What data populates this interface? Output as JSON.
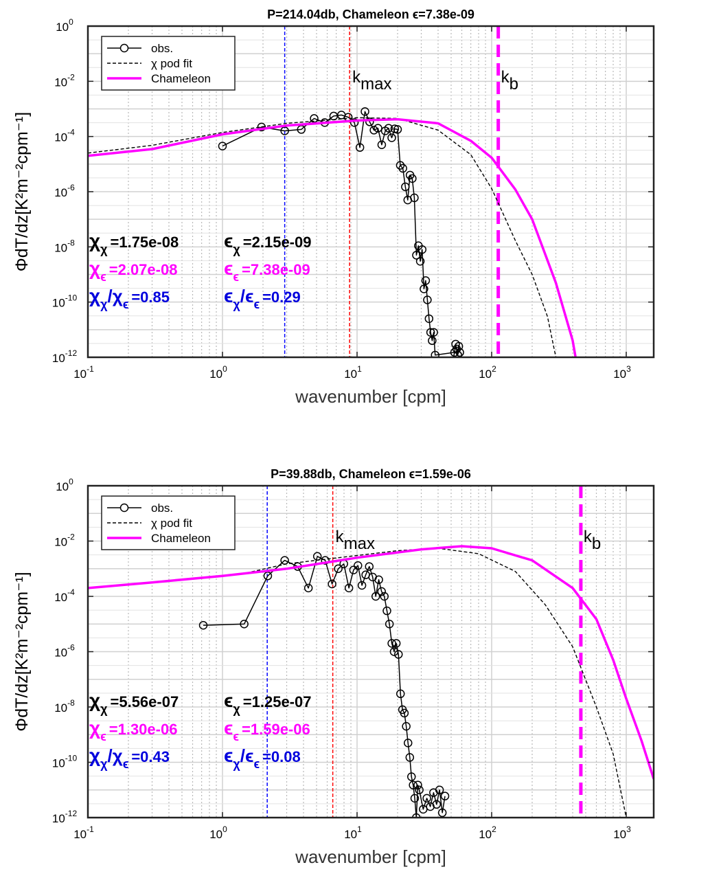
{
  "chart_data": [
    {
      "type": "line",
      "title": "P=214.04db, Chameleon ϵ=7.38e-09",
      "xlabel": "wavenumber [cpm]",
      "ylabel": "ΦdT/dz[K²m⁻²cpm⁻¹]",
      "x_scale": "log",
      "y_scale": "log",
      "xlim": [
        0.1,
        1600
      ],
      "ylim": [
        1e-12,
        1
      ],
      "x_ticks": [
        "10-1",
        "100",
        "101",
        "102",
        "103"
      ],
      "y_ticks": [
        "10-12",
        "10-10",
        "10-8",
        "10-6",
        "10-4",
        "10-2",
        "100"
      ],
      "grid": true,
      "legend_position": "top-left",
      "legend": [
        "obs.",
        "χ pod fit",
        "Chameleon"
      ],
      "series": [
        {
          "name": "obs.",
          "style": "solid-circles",
          "color": "#000000",
          "x": [
            1.0,
            1.95,
            2.9,
            3.85,
            4.8,
            5.75,
            6.7,
            7.65,
            8.6,
            9.55,
            10.5,
            11.45,
            12.4,
            13.35,
            14.3,
            15.25,
            16.2,
            17.15,
            18.1,
            19.05,
            20.0,
            20.95,
            21.9,
            22.85,
            23.8,
            24.75,
            25.7,
            26.65,
            27.6,
            28.55,
            29.5,
            30.45,
            31.4,
            32.35,
            33.3,
            34.25,
            35.2,
            36.15,
            37.1,
            38.05,
            53.0,
            54.0,
            55.0,
            56.0,
            57.0,
            58.0
          ],
          "y": [
            4.5e-05,
            0.00022,
            0.00016,
            0.00018,
            0.00045,
            0.00032,
            0.00055,
            0.0006,
            0.0005,
            0.00032,
            4e-05,
            0.0008,
            0.00034,
            0.00017,
            0.0002,
            5e-05,
            0.00016,
            0.0002,
            9e-05,
            0.00019,
            0.00018,
            9e-06,
            7e-06,
            1.5e-06,
            5e-07,
            4e-06,
            3e-06,
            6e-07,
            5e-09,
            1.1e-08,
            3e-09,
            8e-09,
            3e-10,
            6e-10,
            1.2e-10,
            2.5e-11,
            8e-12,
            4e-12,
            8e-12,
            1.2e-12,
            1.5e-12,
            3e-12,
            2e-12,
            1.2e-12,
            2.5e-12,
            1.5e-12
          ]
        },
        {
          "name": "χ pod fit",
          "style": "dashed",
          "color": "#000000",
          "x": [
            0.1,
            0.3,
            1.0,
            3.0,
            10,
            20,
            40,
            70,
            100,
            150,
            200,
            260,
            300
          ],
          "y": [
            2.5e-05,
            4.8e-05,
            0.00014,
            0.0003,
            0.00048,
            0.00045,
            0.00017,
            2.2e-05,
            1.3e-06,
            1.7e-08,
            1e-09,
            3e-11,
            1e-12
          ]
        },
        {
          "name": "Chameleon",
          "style": "solid-thick",
          "color": "#ff00ff",
          "x": [
            0.1,
            0.3,
            1.0,
            3.0,
            10,
            20,
            40,
            70,
            100,
            150,
            200,
            300,
            400,
            420
          ],
          "y": [
            2e-05,
            3.5e-05,
            0.00012,
            0.00025,
            0.00038,
            0.00042,
            0.0003,
            7e-05,
            1.7e-05,
            1.2e-06,
            1e-07,
            5e-10,
            4e-12,
            1e-12
          ]
        }
      ],
      "vlines": [
        {
          "x": 2.9,
          "style": "dashed-thin",
          "color": "#0000ff"
        },
        {
          "x": 8.8,
          "style": "dashed-thin",
          "color": "#ff0000",
          "label_main": "k",
          "label_sub": "max"
        },
        {
          "x": 112,
          "style": "dashed-thick",
          "color": "#ff00ff",
          "label_main": "k",
          "label_sub": "b"
        }
      ],
      "stats": {
        "row1": {
          "left_sym": "χ",
          "left_sub": "χ",
          "left_val": "=1.75e-08",
          "right_sym": "ϵ",
          "right_sub": "χ",
          "right_val": "=2.15e-09",
          "color": "#000000"
        },
        "row2": {
          "left_sym": "χ",
          "left_sub": "ϵ",
          "left_val": "=2.07e-08",
          "right_sym": "ϵ",
          "right_sub": "ϵ",
          "right_val": "=7.38e-09",
          "color": "#ff00ff"
        },
        "row3": {
          "left_sym": "χ",
          "left_sub": "χ",
          "left_mid": "/χ",
          "left_sub2": "ϵ",
          "left_val": "=0.85",
          "right_sym": "ϵ",
          "right_sub": "χ",
          "right_mid": "/ϵ",
          "right_sub2": "ϵ",
          "right_val": "=0.29",
          "color": "#0000dd"
        }
      }
    },
    {
      "type": "line",
      "title": "P=39.88db, Chameleon ϵ=1.59e-06",
      "xlabel": "wavenumber [cpm]",
      "ylabel": "ΦdT/dz[K²m⁻²cpm⁻¹]",
      "x_scale": "log",
      "y_scale": "log",
      "xlim": [
        0.1,
        1600
      ],
      "ylim": [
        1e-12,
        1
      ],
      "x_ticks": [
        "10-1",
        "100",
        "101",
        "102",
        "103"
      ],
      "y_ticks": [
        "10-12",
        "10-10",
        "10-8",
        "10-6",
        "10-4",
        "10-2",
        "100"
      ],
      "grid": true,
      "legend_position": "top-left",
      "legend": [
        "obs.",
        "χ pod fit",
        "Chameleon"
      ],
      "series": [
        {
          "name": "obs.",
          "style": "solid-circles",
          "color": "#000000",
          "x": [
            0.72,
            1.45,
            2.17,
            2.9,
            3.62,
            4.35,
            5.07,
            5.8,
            6.52,
            7.25,
            7.97,
            8.7,
            9.42,
            10.15,
            10.87,
            11.6,
            12.32,
            13.05,
            13.77,
            14.5,
            15.22,
            15.95,
            16.67,
            17.4,
            18.12,
            18.85,
            19.57,
            20.3,
            21.02,
            21.75,
            22.47,
            23.2,
            23.92,
            24.65,
            25.37,
            26.1,
            26.82,
            27.55,
            28.27,
            29.0,
            31.0,
            33.0,
            35.0,
            37.0,
            39.0,
            41.0,
            43.0,
            45.0
          ],
          "y": [
            9e-06,
            1e-05,
            0.00055,
            0.002,
            0.0012,
            0.0002,
            0.0028,
            0.002,
            0.00028,
            0.001,
            0.0015,
            0.0002,
            0.0009,
            0.0013,
            0.00025,
            0.0006,
            0.0012,
            0.0005,
            0.0001,
            0.0004,
            0.00015,
            0.0001,
            3e-05,
            1e-05,
            2e-06,
            1e-06,
            2e-06,
            8e-07,
            3e-08,
            8e-09,
            6e-09,
            2e-09,
            5e-10,
            1.5e-10,
            3e-11,
            1.5e-11,
            5e-12,
            1e-12,
            1.5e-11,
            1e-11,
            2e-12,
            5e-12,
            2.5e-12,
            8e-12,
            3e-12,
            1e-11,
            1.5e-12,
            6e-12
          ]
        },
        {
          "name": "χ pod fit",
          "style": "dashed",
          "color": "#000000",
          "x": [
            1.5,
            3.0,
            10,
            20,
            40,
            80,
            150,
            250,
            400,
            600,
            800,
            1000
          ],
          "y": [
            0.0007,
            0.0015,
            0.003,
            0.0045,
            0.0055,
            0.0035,
            0.0008,
            5e-05,
            1.5e-06,
            1e-08,
            2e-10,
            1e-12
          ]
        },
        {
          "name": "Chameleon",
          "style": "solid-thick",
          "color": "#ff00ff",
          "x": [
            0.1,
            0.3,
            1.0,
            3.0,
            10,
            30,
            60,
            100,
            200,
            400,
            600,
            800,
            1000,
            1300,
            1600
          ],
          "y": [
            0.0002,
            0.00032,
            0.00055,
            0.001,
            0.0025,
            0.005,
            0.0065,
            0.0055,
            0.002,
            0.0002,
            1.5e-05,
            5e-07,
            2e-08,
            6e-10,
            2.5e-11
          ]
        }
      ],
      "vlines": [
        {
          "x": 2.15,
          "style": "dashed-thin",
          "color": "#0000ff"
        },
        {
          "x": 6.6,
          "style": "dashed-thin",
          "color": "#ff0000",
          "label_main": "k",
          "label_sub": "max"
        },
        {
          "x": 460,
          "style": "dashed-thick",
          "color": "#ff00ff",
          "label_main": "k",
          "label_sub": "b"
        }
      ],
      "stats": {
        "row1": {
          "left_sym": "χ",
          "left_sub": "χ",
          "left_val": "=5.56e-07",
          "right_sym": "ϵ",
          "right_sub": "χ",
          "right_val": "=1.25e-07",
          "color": "#000000"
        },
        "row2": {
          "left_sym": "χ",
          "left_sub": "ϵ",
          "left_val": "=1.30e-06",
          "right_sym": "ϵ",
          "right_sub": "ϵ",
          "right_val": "=1.59e-06",
          "color": "#ff00ff"
        },
        "row3": {
          "left_sym": "χ",
          "left_sub": "χ",
          "left_mid": "/χ",
          "left_sub2": "ϵ",
          "left_val": "=0.43",
          "right_sym": "ϵ",
          "right_sub": "χ",
          "right_mid": "/ϵ",
          "right_sub2": "ϵ",
          "right_val": "=0.08",
          "color": "#0000dd"
        }
      }
    }
  ]
}
